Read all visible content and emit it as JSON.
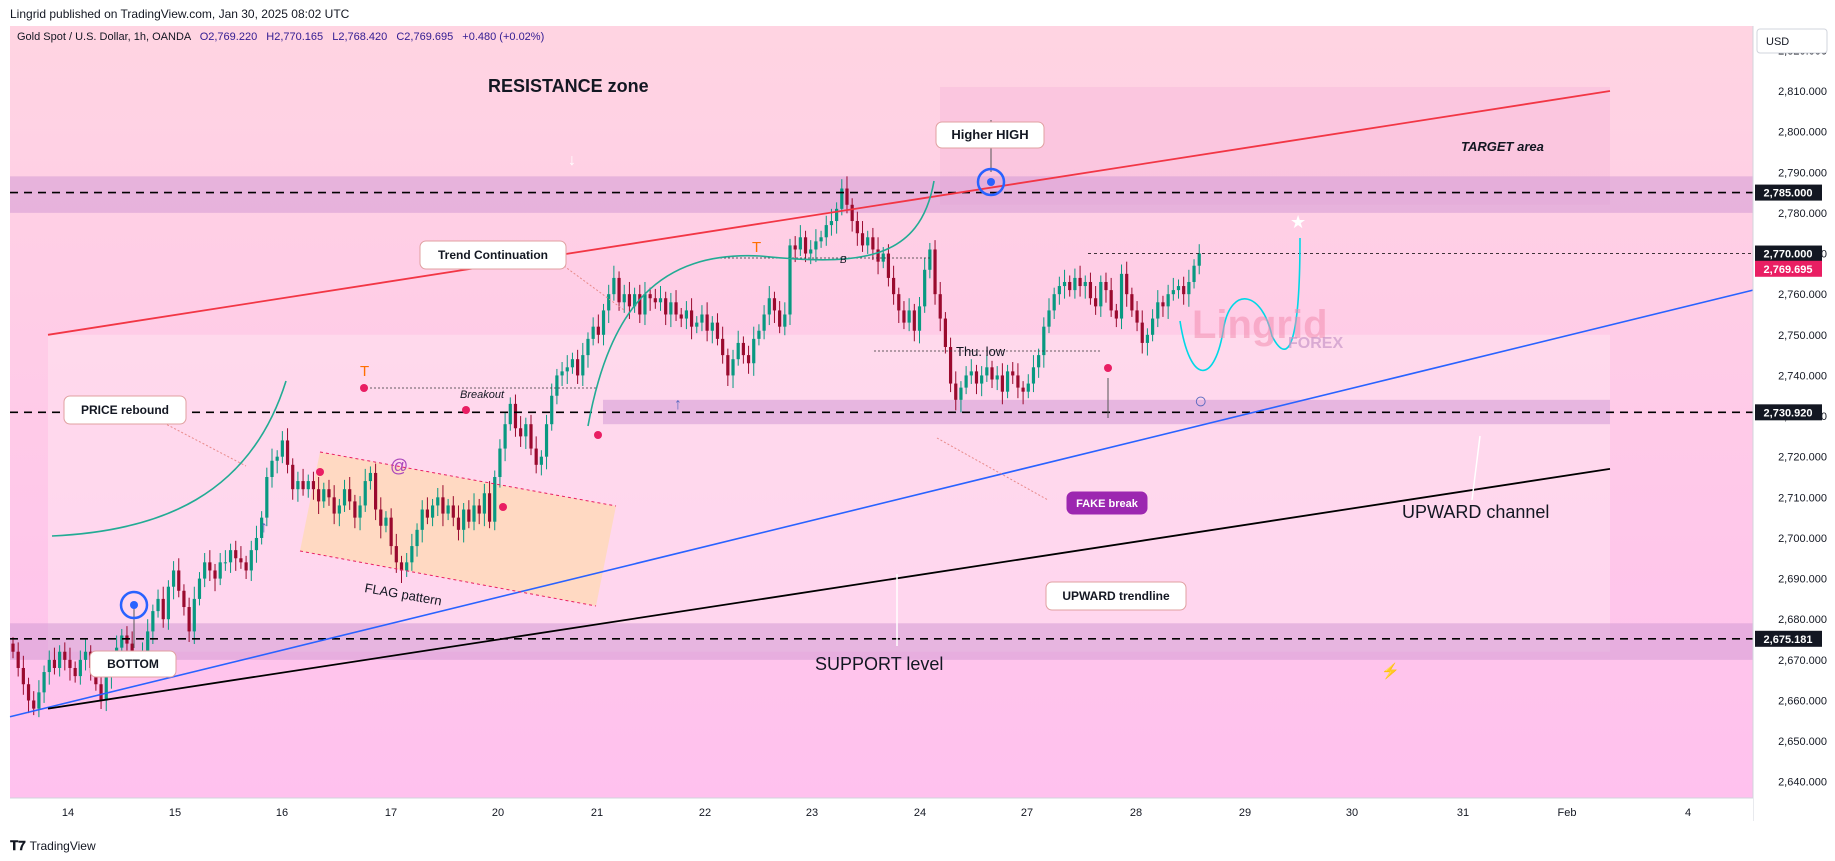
{
  "header": {
    "published": "Lingrid published on TradingView.com, Jan 30, 2025 08:02 UTC"
  },
  "legend": {
    "symbol": "Gold Spot / U.S. Dollar, 1h, OANDA",
    "o": "O2,769.220",
    "h": "H2,770.165",
    "l": "L2,768.420",
    "c": "C2,769.695",
    "chg": "+0.480 (+0.02%)"
  },
  "currency": "USD",
  "footer": {
    "brand": "TradingView"
  },
  "colors": {
    "bg": "#ffd0e3",
    "zone": "#d49ad6",
    "resistance": "#f23645",
    "trend": "#2962ff",
    "support": "#000000",
    "up": "#089981",
    "down": "#9a0a2e",
    "price_tag": "#e91e63",
    "fake_break": "#9c27b0"
  },
  "annotations": {
    "resistance_zone": "RESISTANCE zone",
    "higher_high": "Higher HIGH",
    "target_area": "TARGET area",
    "trend_continuation": "Trend Continuation",
    "price_rebound": "PRICE rebound",
    "breakout": "Breakout",
    "flag_pattern": "FLAG pattern",
    "thu_low": "Thu. low",
    "b_label": "B",
    "fake_break": "FAKE break",
    "upward_trendline": "UPWARD trendline",
    "upward_channel": "UPWARD channel",
    "support_level": "SUPPORT level",
    "bottom": "BOTTOM",
    "watermark": "Lingrid",
    "watermark_sub": "FOREX"
  },
  "chart_data": {
    "type": "candlestick",
    "symbol": "XAUUSD",
    "timeframe": "1h",
    "ylim": [
      2636,
      2826
    ],
    "y_ticks": [
      2640,
      2650,
      2660,
      2670,
      2680,
      2690,
      2700,
      2710,
      2720,
      2730,
      2740,
      2750,
      2760,
      2770,
      2780,
      2790,
      2800,
      2810,
      2820
    ],
    "x_ticks": [
      "14",
      "15",
      "16",
      "17",
      "20",
      "21",
      "22",
      "23",
      "24",
      "27",
      "28",
      "29",
      "30",
      "31",
      "Feb",
      "4"
    ],
    "price_tags": [
      {
        "label": "2,785.000",
        "value": 2785,
        "style": "dark"
      },
      {
        "label": "2,770.000",
        "value": 2770,
        "style": "dark"
      },
      {
        "label": "2,769.695",
        "value": 2769.695,
        "style": "last"
      },
      {
        "label": "2,730.920",
        "value": 2730.92,
        "style": "dark"
      },
      {
        "label": "2,675.181",
        "value": 2675.181,
        "style": "dark"
      }
    ],
    "levels": [
      2785,
      2730.92,
      2675.181
    ],
    "last_price": 2769.695,
    "closes": [
      2672,
      2668,
      2664,
      2660,
      2658,
      2662,
      2667,
      2670,
      2668,
      2672,
      2670,
      2668,
      2666,
      2670,
      2672,
      2668,
      2664,
      2660,
      2666,
      2670,
      2673,
      2676,
      2674,
      2670,
      2668,
      2672,
      2677,
      2682,
      2685,
      2680,
      2688,
      2692,
      2687,
      2683,
      2677,
      2685,
      2690,
      2694,
      2692,
      2690,
      2694,
      2694,
      2697,
      2695,
      2694,
      2692,
      2697,
      2700,
      2705,
      2715,
      2719,
      2720,
      2724,
      2718,
      2712,
      2714,
      2712,
      2714,
      2712,
      2709,
      2712,
      2710,
      2706,
      2708,
      2712,
      2709,
      2705,
      2708,
      2714,
      2716,
      2707,
      2703,
      2705,
      2698,
      2694,
      2692,
      2694,
      2698,
      2702,
      2707,
      2705,
      2708,
      2710,
      2706,
      2708,
      2705,
      2702,
      2707,
      2704,
      2708,
      2706,
      2711,
      2704,
      2715,
      2722,
      2728,
      2733,
      2727,
      2725,
      2728,
      2722,
      2718,
      2720,
      2728,
      2735,
      2740,
      2741,
      2742,
      2744,
      2740,
      2745,
      2749,
      2752,
      2750,
      2756,
      2760,
      2764,
      2758,
      2760,
      2757,
      2760,
      2755,
      2760,
      2759,
      2758,
      2759,
      2755,
      2758,
      2755,
      2754,
      2756,
      2752,
      2753,
      2755,
      2751,
      2753,
      2749,
      2745,
      2740,
      2744,
      2748,
      2745,
      2743,
      2749,
      2751,
      2755,
      2759,
      2756,
      2752,
      2755,
      2772,
      2771,
      2774,
      2770,
      2771,
      2773,
      2774,
      2777,
      2778,
      2781,
      2786,
      2782,
      2778,
      2775,
      2772,
      2774,
      2771,
      2768,
      2770,
      2764,
      2760,
      2756,
      2753,
      2756,
      2751,
      2757,
      2766,
      2771,
      2760,
      2754,
      2747,
      2738,
      2734,
      2737,
      2740,
      2741,
      2738,
      2740,
      2742,
      2739,
      2740,
      2736,
      2741,
      2740,
      2737,
      2736,
      2738,
      2742,
      2745,
      2752,
      2756,
      2760,
      2762,
      2763,
      2761,
      2764,
      2762,
      2763,
      2759,
      2757,
      2763,
      2761,
      2756,
      2754,
      2765,
      2760,
      2756,
      2753,
      2748,
      2750,
      2754,
      2758,
      2757,
      2760,
      2761,
      2762,
      2760,
      2763,
      2767,
      2770
    ]
  }
}
